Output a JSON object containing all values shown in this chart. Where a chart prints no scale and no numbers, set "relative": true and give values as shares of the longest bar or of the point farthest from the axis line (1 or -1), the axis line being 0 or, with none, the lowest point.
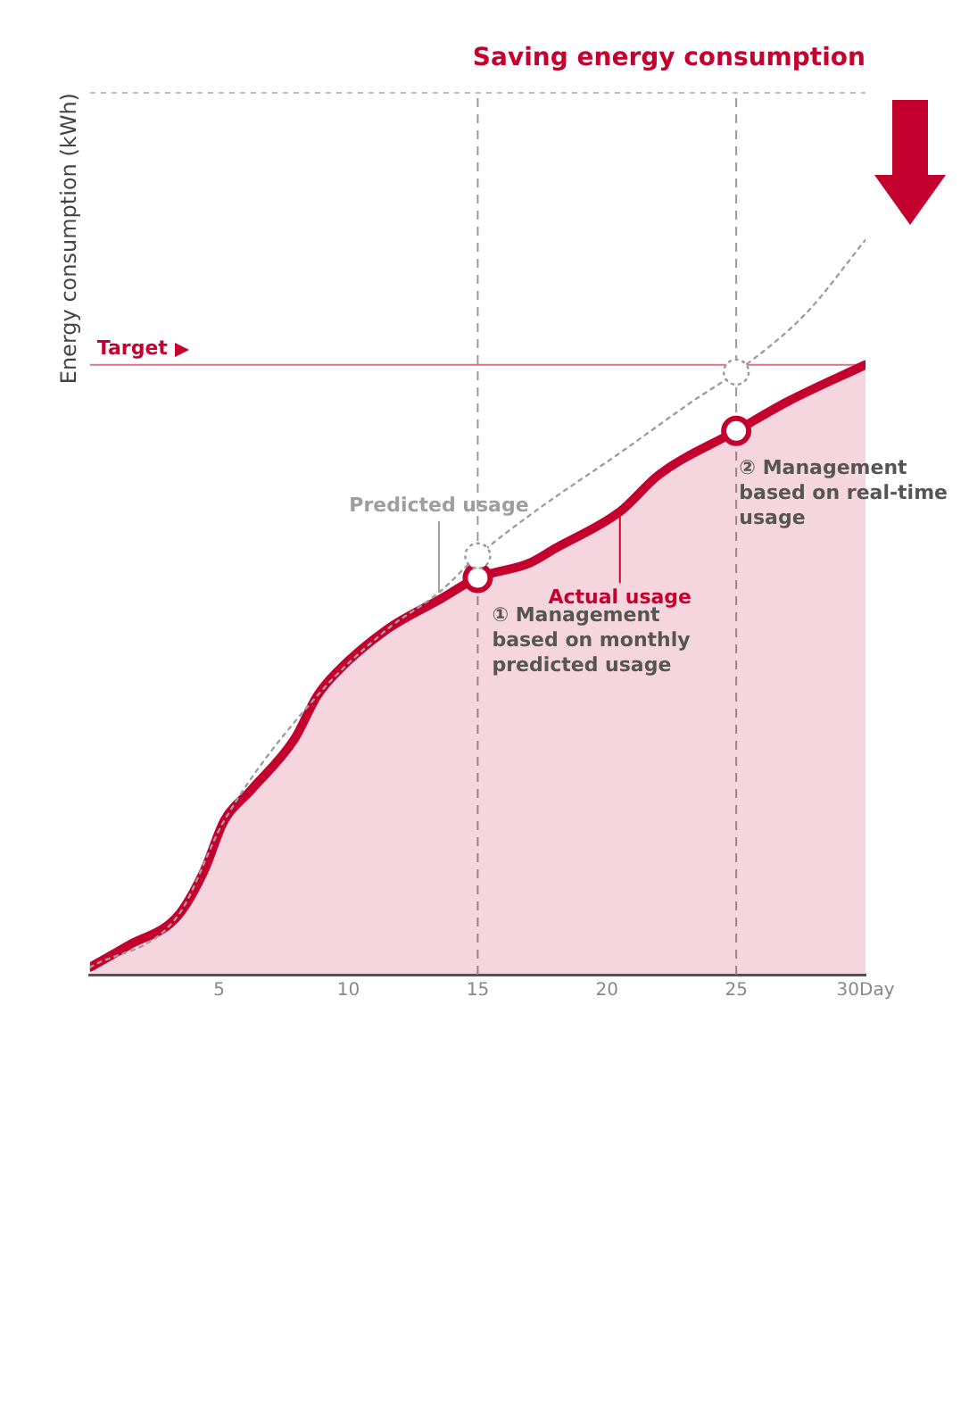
{
  "chart_data": {
    "type": "line",
    "ylabel": "Energy consumption (kWh)",
    "relative": true,
    "xlim": [
      0,
      30
    ],
    "xticks": [
      5,
      10,
      15,
      20,
      25,
      {
        "value": 30,
        "label": "30Day"
      }
    ],
    "tick_labels": "x",
    "series": [
      {
        "name": "Actual usage",
        "type": "area",
        "color": "#c4002f",
        "x": [
          0,
          1.5,
          3.4,
          4.4,
          5.2,
          6.2,
          7.9,
          8.8,
          9.5,
          11.5,
          13.5,
          15,
          17,
          18,
          20.5,
          22,
          25,
          27,
          30
        ],
        "values": [
          0.01,
          0.04,
          0.08,
          0.14,
          0.21,
          0.25,
          0.32,
          0.38,
          0.41,
          0.47,
          0.51,
          0.54,
          0.56,
          0.58,
          0.63,
          0.68,
          0.74,
          0.78,
          0.83
        ]
      },
      {
        "name": "Predicted usage",
        "type": "line",
        "line_style": "dotted",
        "color": "#9e9e9e",
        "x": [
          0,
          3.4,
          5.2,
          8.8,
          11.5,
          13.5,
          15,
          17.2,
          20.5,
          23.3,
          25,
          27.7,
          30
        ],
        "values": [
          0.01,
          0.08,
          0.21,
          0.38,
          0.47,
          0.52,
          0.57,
          0.63,
          0.71,
          0.78,
          0.82,
          0.9,
          1
        ]
      }
    ],
    "ref_lines": [
      {
        "axis": "y",
        "value": 0.83,
        "label": "Target",
        "color": "#e0708a"
      },
      {
        "axis": "x",
        "value": 15,
        "color": "#999999",
        "line_style": "dashed"
      },
      {
        "axis": "x",
        "value": 25,
        "color": "#999999",
        "line_style": "dashed"
      }
    ],
    "annotations": [
      {
        "text": "① Management based on monthly predicted usage",
        "x": 15,
        "y": 0.54
      },
      {
        "text": "② Management based on real-time usage",
        "x": 25,
        "y": 0.74
      },
      "Saving energy consumption"
    ]
  }
}
